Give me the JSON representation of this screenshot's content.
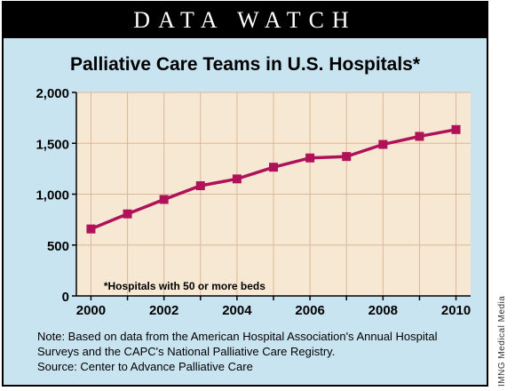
{
  "banner": "DATA WATCH",
  "chart_data": {
    "type": "line",
    "title": "Palliative Care Teams in U.S. Hospitals*",
    "footnote": "*Hospitals with 50 or more beds",
    "x": [
      2000,
      2001,
      2002,
      2003,
      2004,
      2005,
      2006,
      2007,
      2008,
      2009,
      2010
    ],
    "x_ticks": [
      2000,
      2002,
      2004,
      2006,
      2008,
      2010
    ],
    "y_ticks": [
      0,
      500,
      1000,
      1500,
      2000
    ],
    "y_tick_labels": [
      "0",
      "500",
      "1,000",
      "1,500",
      "2,000"
    ],
    "series": [
      {
        "values": [
          658,
          806,
          948,
          1083,
          1150,
          1265,
          1356,
          1370,
          1489,
          1568,
          1635
        ]
      }
    ],
    "xlim": [
      2000,
      2010
    ],
    "ylim": [
      0,
      2000
    ],
    "grid": true,
    "colors": {
      "line": "#b0125a",
      "plot_bg": "#f7e8d3",
      "grid": "#d9b79a"
    }
  },
  "note": "Note: Based on data from the American Hospital Association's Annual Hospital Surveys and the CAPC's National Palliative Care Registry.",
  "source": "Source: Center to Advance Palliative Care",
  "credit": "IMNG Medical Media"
}
